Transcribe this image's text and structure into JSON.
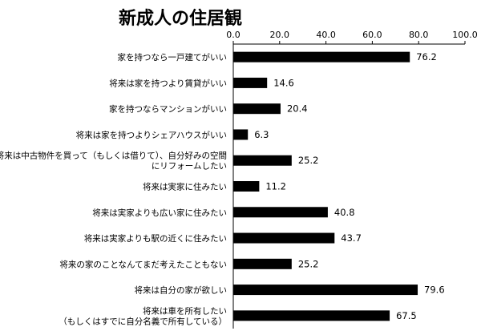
{
  "chart_data": {
    "type": "bar",
    "orientation": "horizontal",
    "title": "新成人の住居観",
    "xlim": [
      0,
      100
    ],
    "ticks": [
      "0.0",
      "20.0",
      "40.0",
      "60.0",
      "80.0",
      "100.0"
    ],
    "tick_values": [
      0,
      20,
      40,
      60,
      80,
      100
    ],
    "categories": [
      [
        "家を持つなら一戸建てがいい"
      ],
      [
        "将来は家を持つより賃貸がいい"
      ],
      [
        "家を持つならマンションがいい"
      ],
      [
        "将来は家を持つよりシェアハウスがいい"
      ],
      [
        "将来は中古物件を買って（もしくは借りて）、自分好みの空間",
        "にリフォームしたい"
      ],
      [
        "将来は実家に住みたい"
      ],
      [
        "将来は実家よりも広い家に住みたい"
      ],
      [
        "将来は実家よりも駅の近くに住みたい"
      ],
      [
        "将来の家のことなんてまだ考えたこともない"
      ],
      [
        "将来は自分の家が欲しい"
      ],
      [
        "将来は車を所有したい",
        "（もしくはすでに自分名義で所有している）"
      ]
    ],
    "values": [
      76.2,
      14.6,
      20.4,
      6.3,
      25.2,
      11.2,
      40.8,
      43.7,
      25.2,
      79.6,
      67.5
    ],
    "value_labels": [
      "76.2",
      "14.6",
      "20.4",
      "6.3",
      "25.2",
      "11.2",
      "40.8",
      "43.7",
      "25.2",
      "79.6",
      "67.5"
    ],
    "bar_color": "#000000",
    "axis_position": "top",
    "grid": false,
    "legend": "none"
  }
}
